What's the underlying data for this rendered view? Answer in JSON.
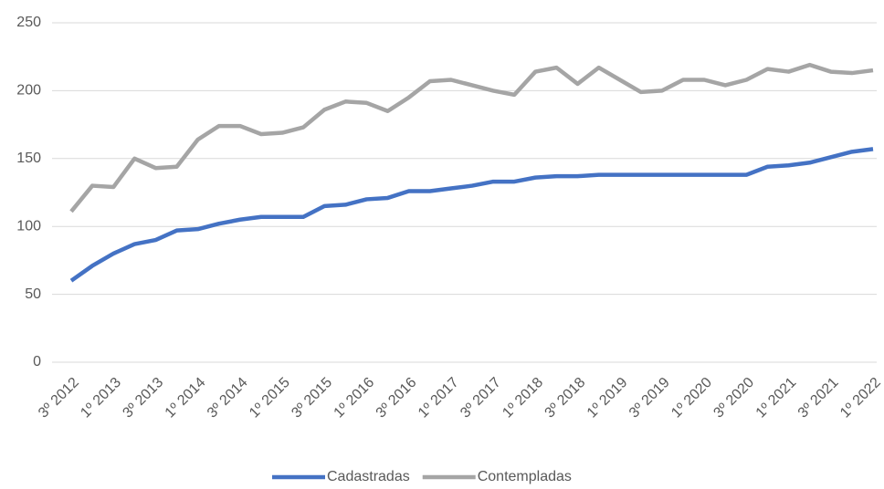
{
  "chart_data": {
    "type": "line",
    "categories": [
      "3º 2012",
      null,
      "1º 2013",
      null,
      "3º 2013",
      null,
      "1º 2014",
      null,
      "3º 2014",
      null,
      "1º 2015",
      null,
      "3º 2015",
      null,
      "1º 2016",
      null,
      "3º 2016",
      null,
      "1º 2017",
      null,
      "3º 2017",
      null,
      "1º 2018",
      null,
      "3º 2018",
      null,
      "1º 2019",
      null,
      "3º 2019",
      null,
      "1º 2020",
      null,
      "3º 2020",
      null,
      "1º 2021",
      null,
      "3º 2021",
      null,
      "1º 2022"
    ],
    "series": [
      {
        "name": "Cadastradas",
        "color": "#4472c4",
        "values": [
          60,
          71,
          80,
          87,
          90,
          97,
          98,
          102,
          105,
          107,
          107,
          107,
          115,
          116,
          120,
          121,
          126,
          126,
          128,
          130,
          133,
          133,
          136,
          137,
          137,
          138,
          138,
          138,
          138,
          138,
          138,
          138,
          138,
          144,
          145,
          147,
          151,
          155,
          157
        ]
      },
      {
        "name": "Contempladas",
        "color": "#a5a5a5",
        "values": [
          111,
          130,
          129,
          150,
          143,
          144,
          164,
          174,
          174,
          168,
          169,
          173,
          186,
          192,
          191,
          185,
          195,
          207,
          208,
          204,
          200,
          197,
          214,
          217,
          205,
          217,
          208,
          199,
          200,
          208,
          208,
          204,
          208,
          216,
          214,
          219,
          214,
          213,
          215
        ]
      }
    ],
    "ylim": [
      0,
      250
    ],
    "yticks": [
      0,
      50,
      100,
      150,
      200,
      250
    ],
    "grid": true,
    "legend": "bottom"
  }
}
